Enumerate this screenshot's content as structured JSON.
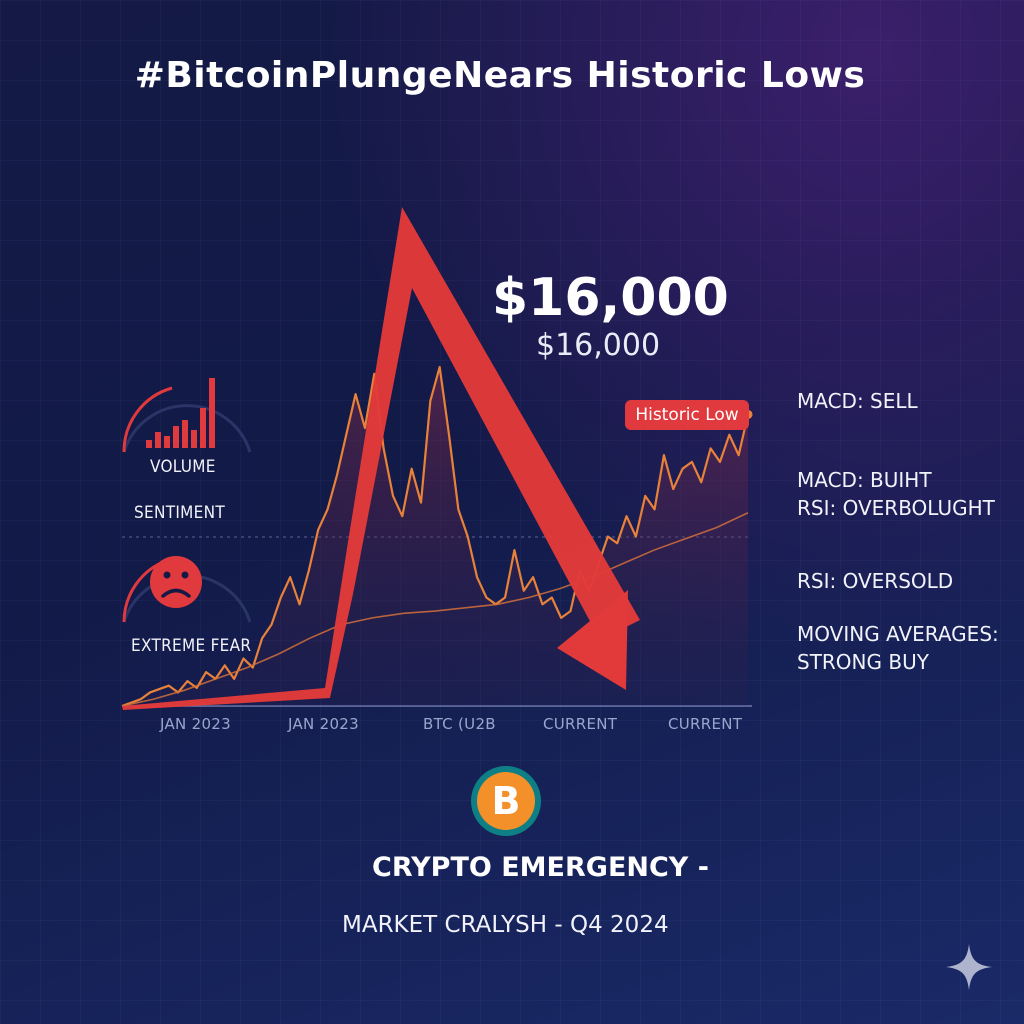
{
  "title": "#BitcoinPlungeNears Historic Lows",
  "price_big": "$16,000",
  "price_small": "$16,000",
  "badge": "Historic Low",
  "gauges": {
    "volume_label": "VOLUME",
    "sentiment_label": "SENTIMENT",
    "fear_label": "EXTREME FEAR"
  },
  "indicators": [
    "MACD: SELL",
    "MACD: BUIHT",
    "RSI: OVERBOLUGHT",
    "RSI: OVERSOLD",
    "MOVING AVERAGES:",
    "STRONG BUY"
  ],
  "x_ticks": [
    "JAN 2023",
    "JAN 2023",
    "BTC (U2B",
    "CURRENT",
    "CURRENT"
  ],
  "coin_symbol": "B",
  "subtitle": "CRYPTO EMERGENCY  -",
  "footer": "MARKET CRALYSH - Q4 2024",
  "colors": {
    "accent_red": "#e03a3e",
    "line_orange": "#e8823a",
    "coin_orange": "#f4902a",
    "coin_ring": "#0f7f86"
  },
  "chart_data": {
    "type": "line",
    "series": [
      {
        "values": [
          0,
          0.3,
          0.6,
          1.2,
          1.5,
          1.8,
          1.2,
          2.2,
          1.6,
          3.0,
          2.4,
          3.6,
          2.4,
          4.2,
          3.4,
          6.0,
          7.2,
          9.6,
          11.4,
          9.0,
          12.0,
          15.6,
          17.4,
          20.4,
          24.0,
          27.6,
          24.6,
          29.4,
          22.8,
          18.6,
          16.8,
          21.0,
          18.0,
          27.0,
          30.0,
          24.0,
          17.4,
          15.0,
          11.4,
          9.6,
          9.0,
          9.6,
          13.8,
          10.2,
          11.4,
          9.0,
          9.6,
          7.8,
          8.4,
          12.0,
          10.2,
          12.6,
          15.0,
          14.4,
          16.8,
          15.0,
          18.6,
          17.4,
          22.2,
          19.2,
          21.0,
          21.6,
          19.8,
          22.8,
          21.6,
          24.0,
          22.2,
          25.8
        ]
      },
      {
        "values": [
          0,
          0.6,
          1.4,
          2.4,
          3.4,
          4.6,
          6.0,
          7.2,
          7.8,
          8.2,
          8.4,
          8.7,
          9.0,
          9.6,
          10.4,
          11.4,
          12.6,
          13.8,
          14.8,
          15.8,
          17.1
        ]
      }
    ]
  }
}
